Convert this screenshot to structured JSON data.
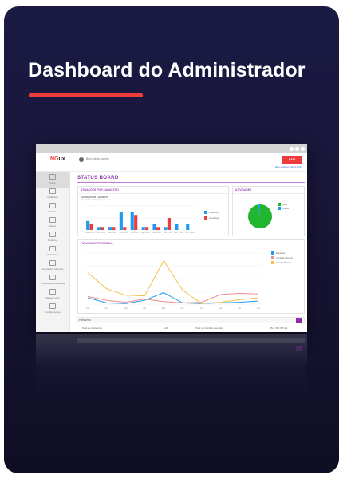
{
  "hero": {
    "title": "Dashboard do Administrador",
    "underline_color": "#ee3b3b",
    "background_color": "#1a1a44"
  },
  "mock": {
    "app": {
      "logo_red": "NG",
      "logo_dark": "ux",
      "user_name": "Bem-Vindo, admin",
      "logout_label": "SAIR",
      "breadcrumb": "Bem-vindo ao Painel NGX"
    },
    "sidebar": {
      "items": [
        {
          "label": "Inicio",
          "icon": "home-icon"
        },
        {
          "label": "Cadastros",
          "icon": "users-icon"
        },
        {
          "label": "Produtos",
          "icon": "box-icon"
        },
        {
          "label": "Redes",
          "icon": "network-icon"
        },
        {
          "label": "Produtos",
          "icon": "package-icon"
        },
        {
          "label": "Relatórios",
          "icon": "report-icon"
        },
        {
          "label": "Comissões Mensais",
          "icon": "gear-icon"
        },
        {
          "label": "Comissões Conferidas",
          "icon": "check-icon"
        },
        {
          "label": "Deletar Logs",
          "icon": "trash-icon"
        },
        {
          "label": "Configurações",
          "icon": "eye-icon"
        }
      ]
    },
    "status_board": {
      "title": "STATUS BOARD",
      "activations_panel": {
        "title": "ATIVAÇÕES POR CADASTRO",
        "subtitle": "Ativações de Cadastros",
        "caption": "Cadastros x Ativações por mês",
        "legend": [
          {
            "name": "Cadastros",
            "color": "#1e9bf0"
          },
          {
            "name": "Ativações",
            "color": "#ee3b3b"
          }
        ]
      },
      "activities_panel": {
        "title": "ATIVIDADES",
        "legend": [
          {
            "name": "Ativo",
            "color": "#21b531"
          },
          {
            "name": "Inativo",
            "color": "#1e9bf0"
          }
        ]
      },
      "monthly_panel": {
        "title": "FATURAMENTO MENSAL",
        "legend": [
          {
            "name": "Entradas",
            "color": "#1e9bf0"
          },
          {
            "name": "Ativação Mensal",
            "color": "#f08e8e"
          },
          {
            "name": "Vendas Diretas",
            "color": "#f3c04a"
          }
        ]
      },
      "resumo": {
        "title": "Resumo",
        "rows": [
          {
            "label": "Total de Cadastros",
            "value": "123"
          },
          {
            "label": "Total de Créditos Gerados",
            "value": "R$ 1.505.695,19"
          }
        ]
      }
    }
  },
  "chart_data": [
    {
      "type": "bar",
      "title": "Ativações de Cadastros",
      "categories": [
        "Mar 2016",
        "Abr 2016",
        "Mai 2016",
        "Jun 2016",
        "Jul 2016",
        "Ago 2016",
        "Set 2016",
        "Out 2016",
        "Nov 2016",
        "Dez 2016"
      ],
      "series": [
        {
          "name": "Cadastros",
          "color": "#1e9bf0",
          "values": [
            3,
            1,
            1,
            6,
            6,
            1,
            2,
            1,
            2,
            2
          ]
        },
        {
          "name": "Ativações",
          "color": "#ee3b3b",
          "values": [
            2,
            1,
            1,
            1,
            5,
            1,
            1,
            4,
            0,
            0
          ]
        }
      ],
      "ylim": [
        0,
        8
      ]
    },
    {
      "type": "pie",
      "title": "ATIVIDADES",
      "series": [
        {
          "name": "Ativo",
          "color": "#21b531",
          "values": [
            98
          ]
        },
        {
          "name": "Inativo",
          "color": "#1e9bf0",
          "values": [
            2
          ]
        }
      ]
    },
    {
      "type": "line",
      "title": "FATURAMENTO MENSAL",
      "categories": [
        "Jan",
        "Fev",
        "Mar",
        "Abr",
        "Mai",
        "Jun",
        "Jul",
        "Ago",
        "Set",
        "Out"
      ],
      "series": [
        {
          "name": "Entradas",
          "color": "#1e9bf0",
          "values": [
            1000,
            200,
            100,
            600,
            1800,
            200,
            100,
            200,
            300,
            500
          ]
        },
        {
          "name": "Ativação Mensal",
          "color": "#f08e8e",
          "values": [
            1200,
            600,
            300,
            800,
            400,
            200,
            300,
            1500,
            1700,
            1600
          ]
        },
        {
          "name": "Vendas Diretas",
          "color": "#f3c04a",
          "values": [
            4900,
            2400,
            1400,
            1300,
            6800,
            2200,
            100,
            300,
            700,
            1000
          ]
        }
      ],
      "ylim": [
        0,
        8000
      ]
    }
  ]
}
